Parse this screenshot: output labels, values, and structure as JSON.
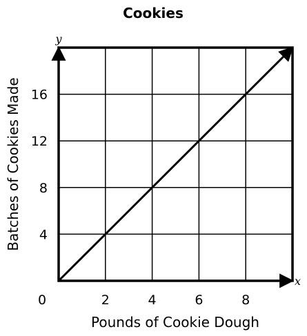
{
  "chart_data": {
    "type": "line",
    "title": "Cookies",
    "xlabel": "Pounds of Cookie Dough",
    "ylabel": "Batches of Cookies Made",
    "x_axis_letter": "x",
    "y_axis_letter": "y",
    "origin_label": "0",
    "xlim": [
      0,
      10
    ],
    "ylim": [
      0,
      20
    ],
    "x_ticks": [
      2,
      4,
      6,
      8
    ],
    "y_ticks": [
      4,
      8,
      12,
      16
    ],
    "x_gridlines": [
      2,
      4,
      6,
      8,
      10
    ],
    "y_gridlines": [
      4,
      8,
      12,
      16,
      20
    ],
    "grid": true,
    "series": [
      {
        "x": [
          0,
          2,
          4,
          6,
          8,
          10
        ],
        "y": [
          0,
          4,
          8,
          12,
          16,
          20
        ]
      }
    ]
  },
  "colors": {
    "line": "#000000",
    "grid": "#000000",
    "background": "#ffffff"
  }
}
